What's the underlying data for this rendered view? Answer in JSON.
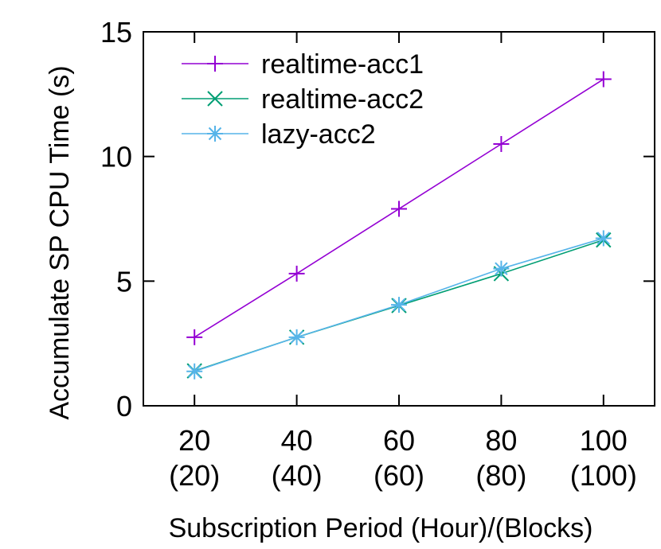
{
  "chart_data": {
    "type": "line",
    "title": "",
    "xlabel": "Subscription Period (Hour)/(Blocks)",
    "ylabel": "Accumulate SP CPU Time (s)",
    "x": [
      20,
      40,
      60,
      80,
      100
    ],
    "x_tick_labels": [
      {
        "value": "20",
        "sub": "(20)"
      },
      {
        "value": "40",
        "sub": "(40)"
      },
      {
        "value": "60",
        "sub": "(60)"
      },
      {
        "value": "80",
        "sub": "(80)"
      },
      {
        "value": "100",
        "sub": "(100)"
      }
    ],
    "y_ticks": [
      0,
      5,
      10,
      15
    ],
    "xlim": [
      10,
      110
    ],
    "ylim": [
      0,
      15
    ],
    "grid": false,
    "legend_position": "top-left",
    "series": [
      {
        "name": "realtime-acc1",
        "marker": "plus",
        "color": "#9400d3",
        "values": [
          2.75,
          5.3,
          7.9,
          10.5,
          13.1
        ]
      },
      {
        "name": "realtime-acc2",
        "marker": "cross",
        "color": "#009e73",
        "values": [
          1.4,
          2.75,
          4.02,
          5.3,
          6.65
        ]
      },
      {
        "name": "lazy-acc2",
        "marker": "star",
        "color": "#56b4e9",
        "values": [
          1.38,
          2.75,
          4.05,
          5.5,
          6.72
        ]
      }
    ]
  }
}
